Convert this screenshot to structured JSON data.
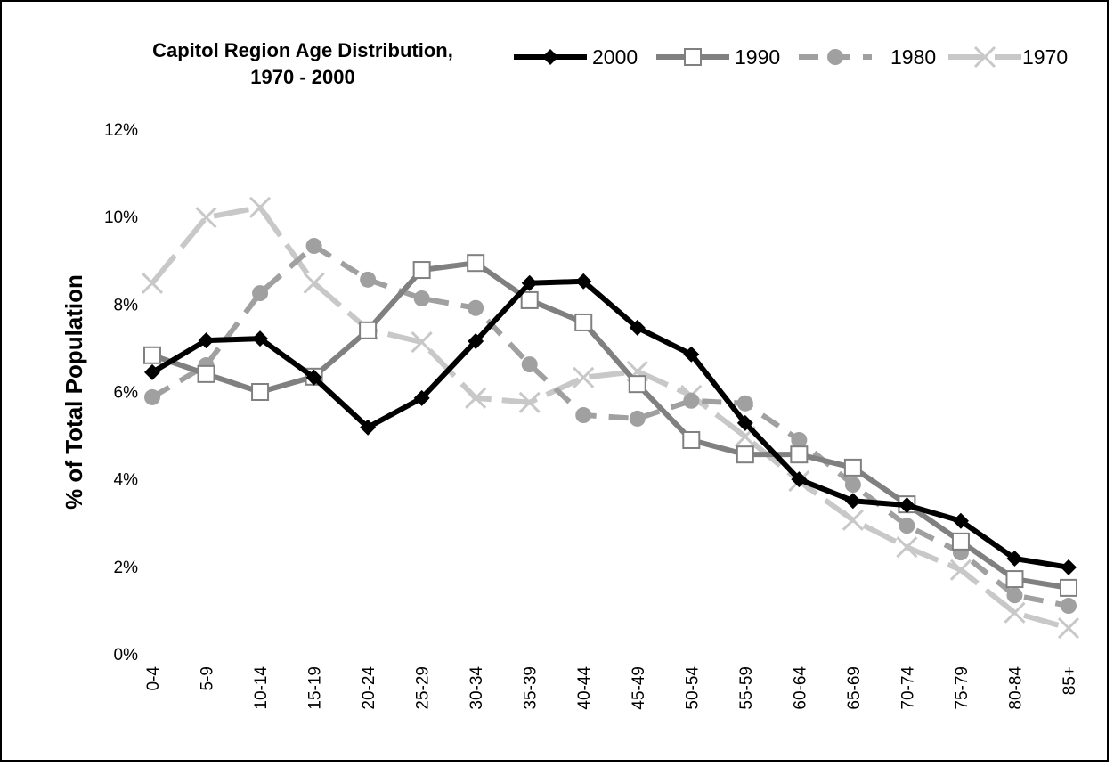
{
  "chart_data": {
    "type": "line",
    "title": [
      "Capitol Region Age Distribution,",
      "1970 - 2000"
    ],
    "y_label": "% of Total Population",
    "categories": [
      "0-4",
      "5-9",
      "10-14",
      "15-19",
      "20-24",
      "25-29",
      "30-34",
      "35-39",
      "40-44",
      "45-49",
      "50-54",
      "55-59",
      "60-64",
      "65-69",
      "70-74",
      "75-79",
      "80-84",
      "85+"
    ],
    "series": [
      {
        "name": "2000",
        "color": "#000000",
        "marker": "diamond",
        "dash": "none",
        "values": [
          6.44,
          7.17,
          7.21,
          6.32,
          5.18,
          5.85,
          7.15,
          8.48,
          8.52,
          7.46,
          6.85,
          5.28,
          3.99,
          3.5,
          3.4,
          3.04,
          2.18,
          1.98
        ]
      },
      {
        "name": "1990",
        "color": "#808080",
        "marker": "square",
        "dash": "none",
        "values": [
          6.83,
          6.4,
          5.99,
          6.34,
          7.4,
          8.78,
          8.94,
          8.09,
          7.58,
          6.17,
          4.89,
          4.56,
          4.56,
          4.26,
          3.42,
          2.57,
          1.71,
          1.51
        ]
      },
      {
        "name": "1980",
        "color": "#a0a0a0",
        "marker": "circle",
        "dash": "22 14",
        "values": [
          5.87,
          6.6,
          8.25,
          9.33,
          8.56,
          8.13,
          7.91,
          6.62,
          5.46,
          5.38,
          5.79,
          5.73,
          4.89,
          3.87,
          2.93,
          2.32,
          1.34,
          1.1
        ]
      },
      {
        "name": "1970",
        "color": "#c8c8c8",
        "marker": "x",
        "dash": "40 12",
        "values": [
          8.48,
          9.98,
          10.21,
          8.48,
          7.42,
          7.13,
          5.85,
          5.75,
          6.32,
          6.46,
          5.91,
          4.97,
          3.95,
          3.06,
          2.44,
          1.92,
          0.94,
          0.59
        ]
      }
    ],
    "ylim": [
      0,
      12
    ],
    "yticks": [
      {
        "value": 0,
        "label": "0%"
      },
      {
        "value": 2,
        "label": "2%"
      },
      {
        "value": 4,
        "label": "4%"
      },
      {
        "value": 6,
        "label": "6%"
      },
      {
        "value": 8,
        "label": "8%"
      },
      {
        "value": 10,
        "label": "10%"
      },
      {
        "value": 12,
        "label": "12%"
      }
    ],
    "grid": false,
    "legend": "top"
  }
}
